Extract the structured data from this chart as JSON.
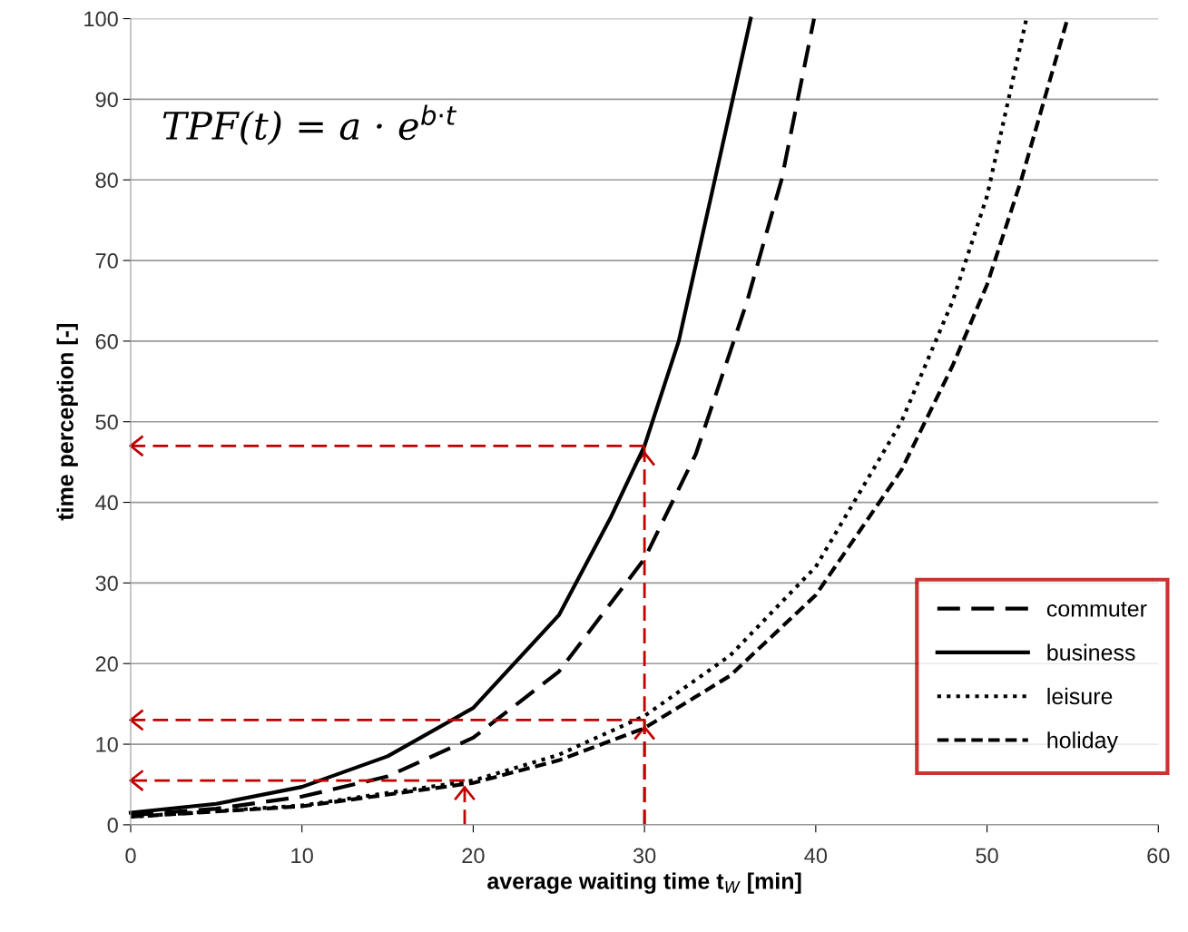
{
  "chart_data": {
    "type": "line",
    "xlabel": "average waiting time t$_{W}$ [min]",
    "ylabel": "time perception [-]",
    "xlim": [
      0,
      60
    ],
    "xticks": [
      0,
      10,
      20,
      30,
      40,
      50,
      60
    ],
    "ylim": [
      0,
      100
    ],
    "yticks": [
      0,
      10,
      20,
      30,
      40,
      50,
      60,
      70,
      80,
      90,
      100
    ],
    "grid": "y",
    "legend": "bottom right",
    "annotations": [
      "TPF(t) = a · e$^{b·t}$"
    ],
    "series": [
      {
        "name": "commuter",
        "color": "#000000",
        "line_style": "dashed",
        "x": [
          0,
          5,
          10,
          15,
          20,
          25,
          30,
          33,
          36,
          38,
          39.9
        ],
        "values": [
          1.2,
          2,
          3.5,
          6,
          10.8,
          19,
          33,
          46,
          65,
          80,
          100
        ]
      },
      {
        "name": "business",
        "color": "#000000",
        "line_style": "solid",
        "x": [
          0,
          5,
          10,
          15,
          20,
          25,
          28,
          30,
          32,
          34,
          36.2
        ],
        "values": [
          1.5,
          2.6,
          4.7,
          8.5,
          14.5,
          26,
          38,
          47,
          60,
          79,
          100
        ]
      },
      {
        "name": "leisure",
        "color": "#000000",
        "line_style": "dotted",
        "x": [
          0,
          10,
          20,
          25,
          30,
          35,
          40,
          45,
          48,
          50,
          52.3
        ],
        "values": [
          1.0,
          2.4,
          5.5,
          8.7,
          13.5,
          21,
          32,
          50,
          65,
          78,
          100
        ]
      },
      {
        "name": "holiday",
        "color": "#000000",
        "line_style": "shortdash",
        "x": [
          0,
          10,
          20,
          25,
          30,
          35,
          40,
          45,
          48,
          50,
          52,
          54.7
        ],
        "values": [
          1.0,
          2.3,
          5.2,
          8,
          12,
          18.5,
          28.5,
          44,
          57,
          67,
          80,
          100
        ]
      },
      {
        "color": "#c00000",
        "line_style": "dashed",
        "x": [
          30,
          0
        ],
        "values": [
          47,
          47
        ]
      },
      {
        "color": "#c00000",
        "line_style": "dashed",
        "x": [
          30,
          0
        ],
        "values": [
          13,
          13
        ]
      },
      {
        "color": "#c00000",
        "line_style": "dashed",
        "x": [
          19.5,
          0
        ],
        "values": [
          5.5,
          5.5
        ]
      }
    ]
  }
}
